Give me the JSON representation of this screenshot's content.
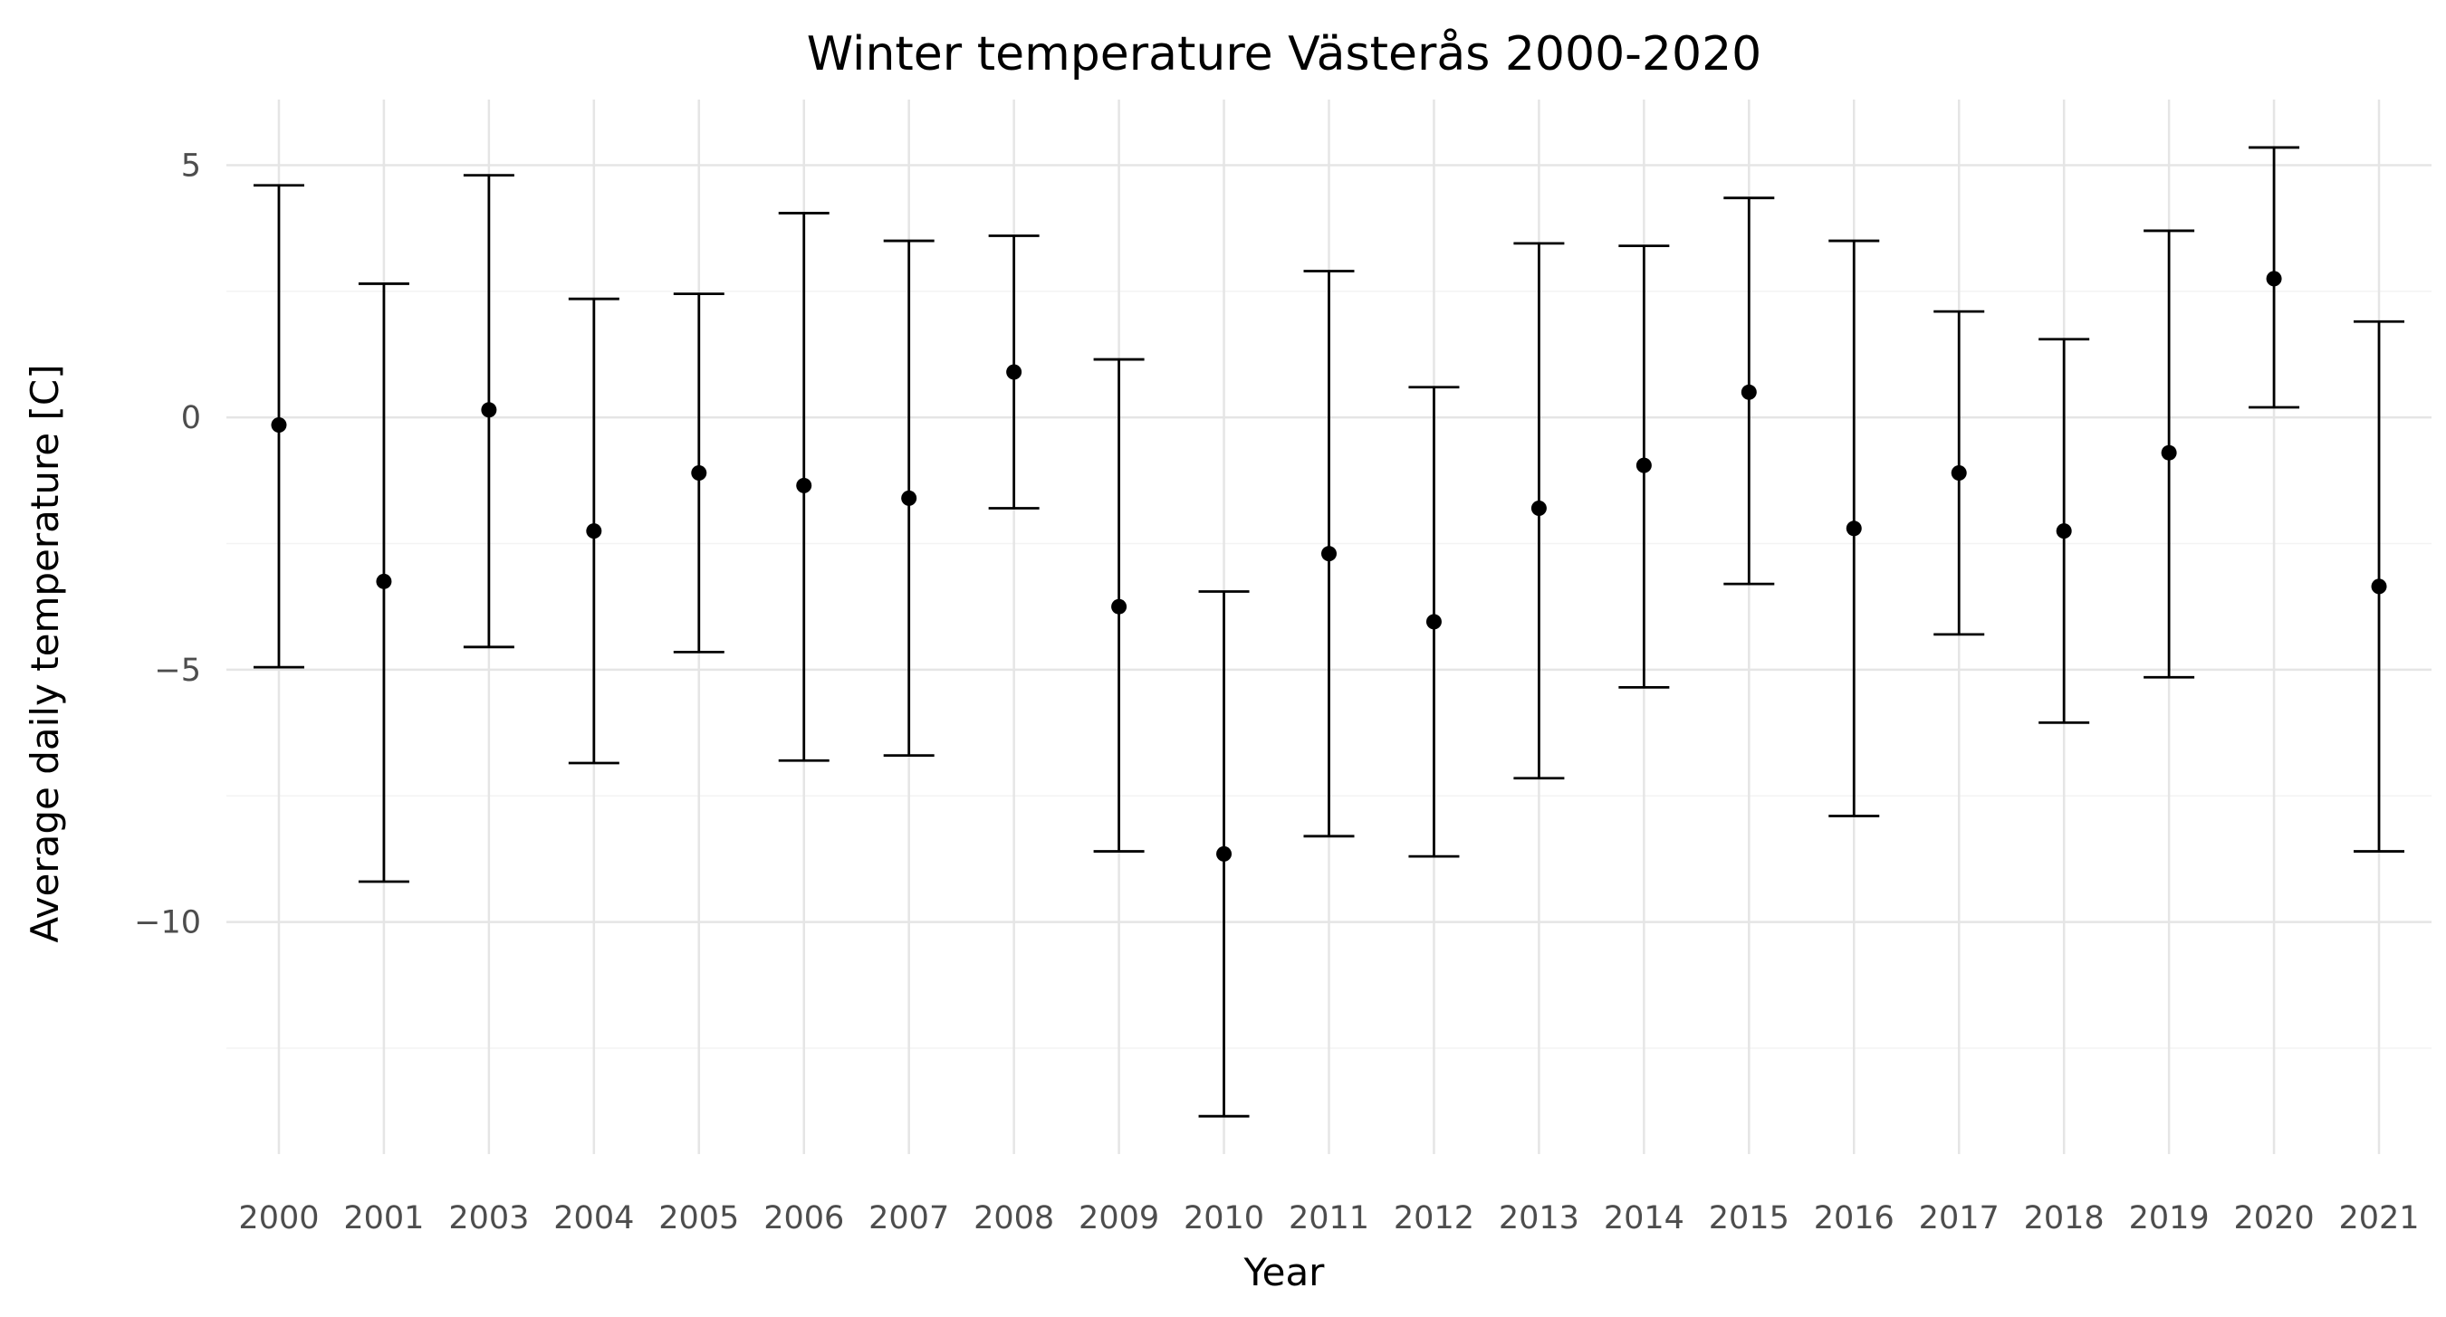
{
  "chart_data": {
    "type": "scatter",
    "title": "Winter temperature Västerås 2000-2020",
    "xlabel": "Year",
    "ylabel": "Average daily temperature [C]",
    "categories": [
      "2000",
      "2001",
      "2003",
      "2004",
      "2005",
      "2006",
      "2007",
      "2008",
      "2009",
      "2010",
      "2011",
      "2012",
      "2013",
      "2014",
      "2015",
      "2016",
      "2017",
      "2018",
      "2019",
      "2020",
      "2021"
    ],
    "mean": [
      -0.15,
      -3.25,
      0.15,
      -2.25,
      -1.1,
      -1.35,
      -1.6,
      0.9,
      -3.75,
      -8.65,
      -2.7,
      -4.05,
      -1.8,
      -0.95,
      0.5,
      -2.2,
      -1.1,
      -2.25,
      -0.7,
      2.75,
      -3.35
    ],
    "upper": [
      4.6,
      2.65,
      4.8,
      2.35,
      2.45,
      4.05,
      3.5,
      3.6,
      1.15,
      -3.45,
      2.9,
      0.6,
      3.45,
      3.4,
      4.35,
      3.5,
      2.1,
      1.55,
      3.7,
      5.35,
      1.9
    ],
    "lower": [
      -4.95,
      -9.2,
      -4.55,
      -6.85,
      -4.65,
      -6.8,
      -6.7,
      -1.8,
      -8.6,
      -13.85,
      -8.3,
      -8.7,
      -7.15,
      -5.35,
      -3.3,
      -7.9,
      -4.3,
      -6.05,
      -5.15,
      0.2,
      -8.6
    ],
    "yticks": [
      5,
      0,
      -5,
      -10
    ],
    "ytick_labels": [
      "5",
      "0",
      "−5",
      "−10"
    ],
    "ylim": [
      -14.6,
      6.3
    ],
    "grid": true,
    "colors": {
      "marks": "#000000",
      "grid": "#e5e5e5",
      "tick_text": "#4d4d4d"
    }
  }
}
